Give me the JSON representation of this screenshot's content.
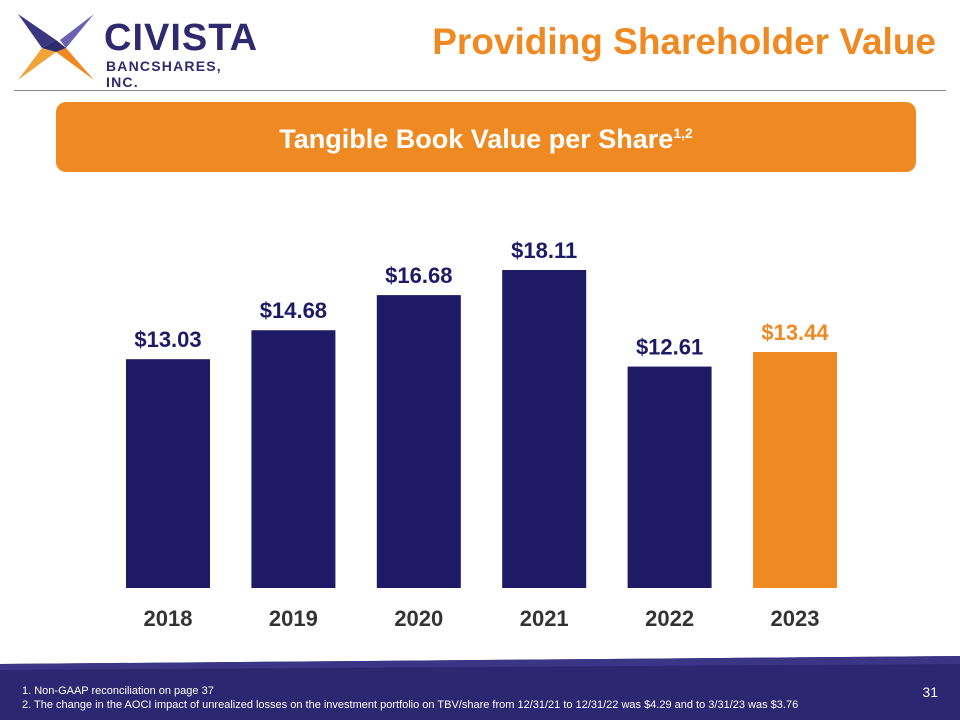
{
  "header": {
    "logo_name": "CIVISTA",
    "logo_sub": "BANCSHARES, INC.",
    "title": "Providing Shareholder Value"
  },
  "banner": {
    "text": "Tangible Book Value per Share",
    "superscript": "1,2"
  },
  "colors": {
    "navy": "#1e1a66",
    "orange": "#ef8a22"
  },
  "chart_data": {
    "type": "bar",
    "title": "Tangible Book Value per Share",
    "categories": [
      "2018",
      "2019",
      "2020",
      "2021",
      "2022",
      "2023"
    ],
    "values": [
      13.03,
      14.68,
      16.68,
      18.11,
      12.61,
      13.44
    ],
    "labels": [
      "$13.03",
      "$14.68",
      "$16.68",
      "$18.11",
      "$12.61",
      "$13.44"
    ],
    "highlight_index": 5,
    "ylim": [
      0,
      18.11
    ],
    "xlabel": "",
    "ylabel": "",
    "grid": false
  },
  "footer": {
    "notes": [
      "1. Non-GAAP reconciliation on page 37",
      "2.  The change in the AOCI impact of unrealized losses on the investment portfolio on TBV/share from 12/31/21 to 12/31/22 was $4.29  and to 3/31/23 was $3.76"
    ],
    "page_number": "31"
  }
}
